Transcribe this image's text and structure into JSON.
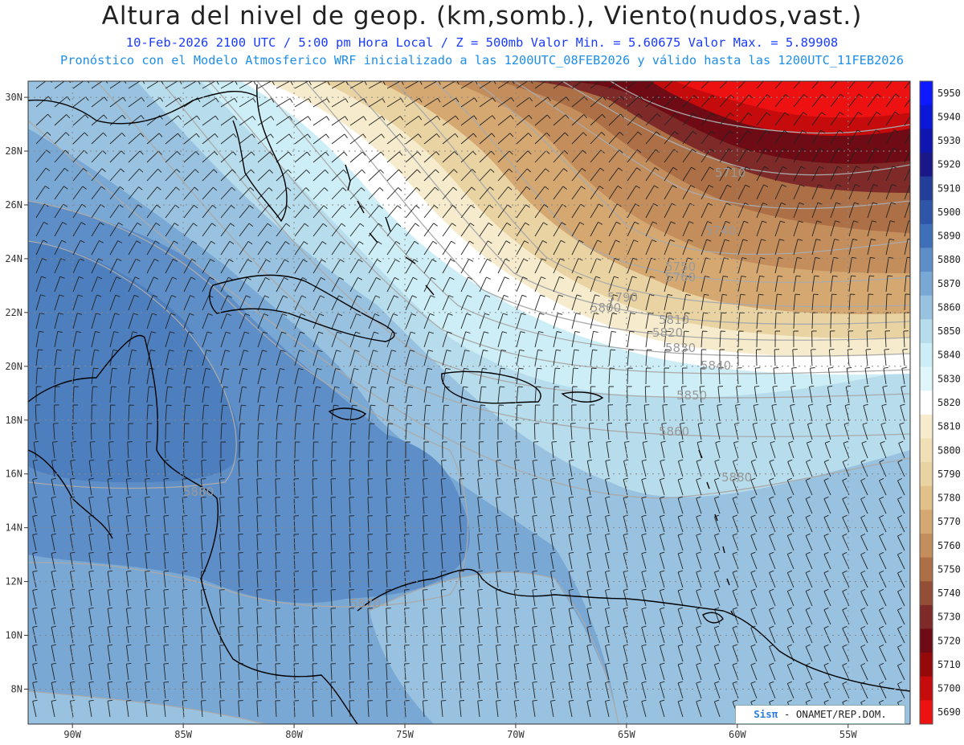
{
  "title": "Altura del nivel de geop. (km,somb.), Viento(nudos,vast.)",
  "subtitle_line1": "10-Feb-2026  2100 UTC / 5:00 pm Hora Local / Z = 500mb     Valor Min. = 5.60675  Valor Max. = 5.89908",
  "subtitle_line2": "Pronóstico con el Modelo Atmosferico WRF inicializado a las 1200UTC_08FEB2026 y válido hasta las  1200UTC_11FEB2026",
  "credit": {
    "logo": "Sisπ",
    "text": " - ONAMET/REP.DOM."
  },
  "map": {
    "lon_range": [
      -92,
      -52.2
    ],
    "lat_range": [
      6.7,
      30.6
    ],
    "lon_ticks": [
      "90W",
      "85W",
      "80W",
      "75W",
      "70W",
      "65W",
      "60W",
      "55W"
    ],
    "lat_ticks": [
      "30N",
      "28N",
      "26N",
      "24N",
      "22N",
      "20N",
      "18N",
      "16N",
      "14N",
      "12N",
      "10N",
      "8N"
    ],
    "contour_labels": [
      "5710",
      "5740",
      "5750",
      "5760",
      "5790",
      "5800",
      "5810",
      "5820",
      "5830",
      "5840",
      "5850",
      "5860",
      "5880",
      "5880",
      "5870"
    ]
  },
  "colorbar": {
    "levels": [
      "5950",
      "5940",
      "5930",
      "5920",
      "5910",
      "5900",
      "5890",
      "5880",
      "5870",
      "5860",
      "5850",
      "5840",
      "5830",
      "5820",
      "5810",
      "5800",
      "5790",
      "5780",
      "5770",
      "5760",
      "5750",
      "5740",
      "5730",
      "5720",
      "5710",
      "5700",
      "5690"
    ],
    "colors": [
      "#0d1aff",
      "#0b18d8",
      "#0f16b0",
      "#1a1888",
      "#233d9a",
      "#2f55a8",
      "#3f6fb8",
      "#5d8ec8",
      "#7aa8d4",
      "#98c2e0",
      "#b7dcec",
      "#cdeef6",
      "#dff7fb",
      "#ffffff",
      "#f6eccd",
      "#f1e0b6",
      "#ead3a2",
      "#e2c08a",
      "#d5a872",
      "#c48e5c",
      "#ad6f45",
      "#934f36",
      "#7d2a28",
      "#6e0b14",
      "#940a0a",
      "#c50b0b",
      "#ee1111"
    ]
  }
}
